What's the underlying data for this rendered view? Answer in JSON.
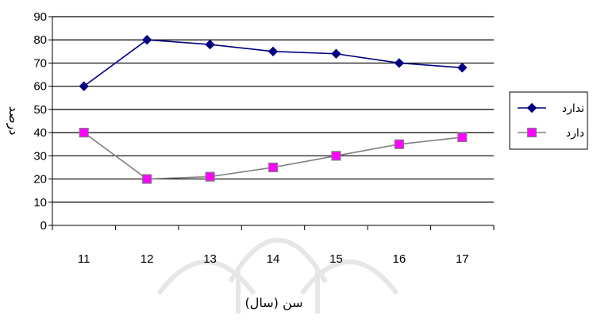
{
  "chart_data": {
    "type": "line",
    "title": "",
    "xlabel": "سن (سال)",
    "ylabel": "درصد",
    "categories": [
      "11",
      "12",
      "13",
      "14",
      "15",
      "16",
      "17"
    ],
    "ylim": [
      0,
      90
    ],
    "yticks": [
      0,
      10,
      20,
      30,
      40,
      50,
      60,
      70,
      80,
      90
    ],
    "grid": true,
    "legend_position": "right",
    "series": [
      {
        "name": "ندارد",
        "values": [
          60,
          80,
          78,
          75,
          74,
          70,
          68
        ],
        "color": "#000080",
        "marker": "diamond"
      },
      {
        "name": "دارد",
        "values": [
          40,
          20,
          21,
          25,
          30,
          35,
          38
        ],
        "color": "#808080",
        "marker": "square",
        "marker_fill": "#ff00ff"
      }
    ]
  },
  "watermark": {
    "icon": "arch-logo-watermark-icon"
  }
}
